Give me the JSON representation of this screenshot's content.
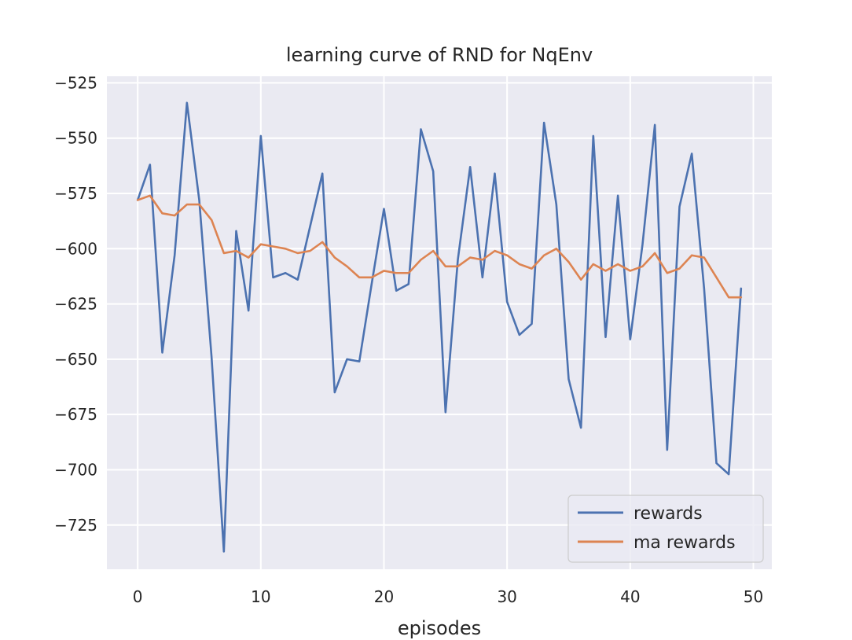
{
  "chart_data": {
    "type": "line",
    "title": "learning curve of RND for NqEnv",
    "xlabel": "episodes",
    "ylabel": "",
    "xlim": [
      -2.5,
      51.5
    ],
    "ylim": [
      -745,
      -522
    ],
    "xticks": [
      0,
      10,
      20,
      30,
      40,
      50
    ],
    "yticks": [
      -525,
      -550,
      -575,
      -600,
      -625,
      -650,
      -675,
      -700,
      -725
    ],
    "xtick_labels": [
      "0",
      "10",
      "20",
      "30",
      "40",
      "50"
    ],
    "ytick_labels": [
      "−525",
      "−550",
      "−575",
      "−600",
      "−625",
      "−650",
      "−675",
      "−700",
      "−725"
    ],
    "grid": true,
    "legend_position": "lower right",
    "x": [
      0,
      1,
      2,
      3,
      4,
      5,
      6,
      7,
      8,
      9,
      10,
      11,
      12,
      13,
      14,
      15,
      16,
      17,
      18,
      19,
      20,
      21,
      22,
      23,
      24,
      25,
      26,
      27,
      28,
      29,
      30,
      31,
      32,
      33,
      34,
      35,
      36,
      37,
      38,
      39,
      40,
      41,
      42,
      43,
      44,
      45,
      46,
      47,
      48,
      49
    ],
    "series": [
      {
        "name": "rewards",
        "color": "#4c72b0",
        "values": [
          -578,
          -562,
          -647,
          -603,
          -534,
          -578,
          -649,
          -737,
          -592,
          -628,
          -549,
          -613,
          -611,
          -614,
          -590,
          -566,
          -665,
          -650,
          -651,
          -616,
          -582,
          -619,
          -616,
          -546,
          -565,
          -674,
          -605,
          -563,
          -613,
          -566,
          -624,
          -639,
          -634,
          -543,
          -580,
          -659,
          -681,
          -549,
          -640,
          -576,
          -641,
          -598,
          -544,
          -691,
          -581,
          -557,
          -618,
          -697,
          -702,
          -618
        ]
      },
      {
        "name": "ma rewards",
        "color": "#dd8452",
        "values": [
          -578,
          -576,
          -584,
          -585,
          -580,
          -580,
          -587,
          -602,
          -601,
          -604,
          -598,
          -599,
          -600,
          -602,
          -601,
          -597,
          -604,
          -608,
          -613,
          -613,
          -610,
          -611,
          -611,
          -605,
          -601,
          -608,
          -608,
          -604,
          -605,
          -601,
          -603,
          -607,
          -609,
          -603,
          -600,
          -606,
          -614,
          -607,
          -610,
          -607,
          -610,
          -608,
          -602,
          -611,
          -609,
          -603,
          -604,
          -613,
          -622,
          -622
        ]
      }
    ]
  }
}
